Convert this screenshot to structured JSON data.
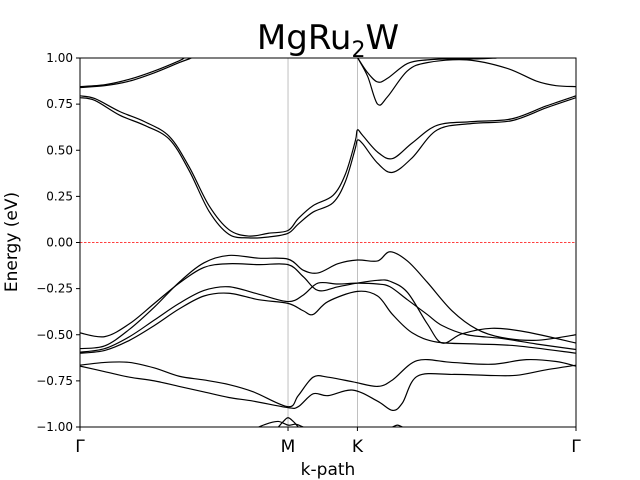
{
  "chart_data": {
    "type": "line",
    "title": "MgRu",
    "title_subscript": "2",
    "title_suffix": "W",
    "xlabel": "k-path",
    "ylabel": "Energy (eV)",
    "ylim": [
      -1.0,
      1.0
    ],
    "yticks": [
      1.0,
      0.75,
      0.5,
      0.25,
      0.0,
      -0.25,
      -0.5,
      -0.75,
      -1.0
    ],
    "ytick_labels": [
      "1.00",
      "0.75",
      "0.50",
      "0.25",
      "0.00",
      "−0.25",
      "−0.50",
      "−0.75",
      "−1.00"
    ],
    "xlim": [
      0,
      1.0
    ],
    "high_symmetry_points": [
      {
        "label": "Γ",
        "x": 0.0
      },
      {
        "label": "M",
        "x": 0.4194
      },
      {
        "label": "K",
        "x": 0.5593
      },
      {
        "label": "Γ",
        "x": 1.0
      }
    ],
    "fermi_level": 0.0,
    "colors": {
      "bands": "#000000",
      "fermi": "#ff0000",
      "vlines": "#b0b0b0"
    },
    "series": [
      {
        "points": [
          [
            0.0,
            0.845
          ],
          [
            0.05,
            0.855
          ],
          [
            0.1,
            0.885
          ],
          [
            0.15,
            0.93
          ],
          [
            0.2,
            0.985
          ],
          [
            0.21,
            1.0
          ]
        ]
      },
      {
        "points": [
          [
            0.0,
            0.84
          ],
          [
            0.05,
            0.85
          ],
          [
            0.1,
            0.875
          ],
          [
            0.15,
            0.92
          ],
          [
            0.2,
            0.975
          ],
          [
            0.225,
            1.0
          ]
        ]
      },
      {
        "points": [
          [
            0.56,
            1.0
          ],
          [
            0.58,
            0.9
          ],
          [
            0.6,
            0.75
          ],
          [
            0.62,
            0.79
          ],
          [
            0.66,
            0.93
          ],
          [
            0.7,
            0.975
          ],
          [
            0.78,
            0.99
          ],
          [
            0.86,
            0.945
          ],
          [
            0.92,
            0.875
          ],
          [
            0.96,
            0.85
          ],
          [
            1.0,
            0.845
          ]
        ]
      },
      {
        "points": [
          [
            0.56,
            1.0
          ],
          [
            0.58,
            0.92
          ],
          [
            0.6,
            0.87
          ],
          [
            0.62,
            0.89
          ],
          [
            0.66,
            0.97
          ],
          [
            0.7,
            0.99
          ],
          [
            0.74,
            0.995
          ],
          [
            0.8,
            0.995
          ],
          [
            0.84,
            1.0
          ]
        ]
      },
      {
        "points": [
          [
            0.0,
            0.795
          ],
          [
            0.03,
            0.78
          ],
          [
            0.08,
            0.71
          ],
          [
            0.13,
            0.655
          ],
          [
            0.18,
            0.575
          ],
          [
            0.22,
            0.41
          ],
          [
            0.26,
            0.2
          ],
          [
            0.3,
            0.07
          ],
          [
            0.34,
            0.035
          ],
          [
            0.38,
            0.05
          ],
          [
            0.4194,
            0.065
          ],
          [
            0.44,
            0.13
          ],
          [
            0.47,
            0.2
          ],
          [
            0.51,
            0.255
          ],
          [
            0.535,
            0.37
          ],
          [
            0.555,
            0.55
          ],
          [
            0.5593,
            0.61
          ],
          [
            0.57,
            0.58
          ],
          [
            0.6,
            0.49
          ],
          [
            0.63,
            0.455
          ],
          [
            0.67,
            0.54
          ],
          [
            0.72,
            0.635
          ],
          [
            0.79,
            0.655
          ],
          [
            0.87,
            0.67
          ],
          [
            0.94,
            0.74
          ],
          [
            1.0,
            0.795
          ]
        ]
      },
      {
        "points": [
          [
            0.0,
            0.785
          ],
          [
            0.03,
            0.77
          ],
          [
            0.08,
            0.69
          ],
          [
            0.13,
            0.635
          ],
          [
            0.18,
            0.56
          ],
          [
            0.22,
            0.39
          ],
          [
            0.26,
            0.17
          ],
          [
            0.3,
            0.045
          ],
          [
            0.34,
            0.025
          ],
          [
            0.38,
            0.03
          ],
          [
            0.4194,
            0.05
          ],
          [
            0.44,
            0.1
          ],
          [
            0.47,
            0.165
          ],
          [
            0.51,
            0.215
          ],
          [
            0.535,
            0.33
          ],
          [
            0.555,
            0.51
          ],
          [
            0.5593,
            0.555
          ],
          [
            0.57,
            0.535
          ],
          [
            0.6,
            0.43
          ],
          [
            0.63,
            0.38
          ],
          [
            0.67,
            0.46
          ],
          [
            0.72,
            0.61
          ],
          [
            0.79,
            0.645
          ],
          [
            0.87,
            0.66
          ],
          [
            0.94,
            0.73
          ],
          [
            1.0,
            0.785
          ]
        ]
      },
      {
        "points": [
          [
            0.0,
            -0.575
          ],
          [
            0.05,
            -0.56
          ],
          [
            0.1,
            -0.47
          ],
          [
            0.15,
            -0.35
          ],
          [
            0.2,
            -0.215
          ],
          [
            0.25,
            -0.11
          ],
          [
            0.3,
            -0.07
          ],
          [
            0.36,
            -0.085
          ],
          [
            0.4194,
            -0.09
          ],
          [
            0.45,
            -0.15
          ],
          [
            0.48,
            -0.165
          ],
          [
            0.52,
            -0.115
          ],
          [
            0.5593,
            -0.095
          ],
          [
            0.6,
            -0.1
          ],
          [
            0.625,
            -0.05
          ],
          [
            0.66,
            -0.1
          ],
          [
            0.7,
            -0.215
          ],
          [
            0.75,
            -0.37
          ],
          [
            0.8,
            -0.47
          ],
          [
            0.85,
            -0.515
          ],
          [
            0.92,
            -0.53
          ],
          [
            1.0,
            -0.5
          ]
        ]
      },
      {
        "points": [
          [
            0.0,
            -0.49
          ],
          [
            0.05,
            -0.51
          ],
          [
            0.1,
            -0.44
          ],
          [
            0.15,
            -0.33
          ],
          [
            0.2,
            -0.22
          ],
          [
            0.25,
            -0.135
          ],
          [
            0.3,
            -0.115
          ],
          [
            0.36,
            -0.12
          ],
          [
            0.4194,
            -0.12
          ],
          [
            0.45,
            -0.185
          ],
          [
            0.48,
            -0.26
          ],
          [
            0.52,
            -0.24
          ],
          [
            0.5593,
            -0.22
          ],
          [
            0.6,
            -0.205
          ],
          [
            0.625,
            -0.21
          ],
          [
            0.66,
            -0.27
          ],
          [
            0.7,
            -0.44
          ],
          [
            0.73,
            -0.545
          ],
          [
            0.77,
            -0.495
          ],
          [
            0.83,
            -0.465
          ],
          [
            0.9,
            -0.485
          ],
          [
            1.0,
            -0.545
          ]
        ]
      },
      {
        "points": [
          [
            0.0,
            -0.595
          ],
          [
            0.05,
            -0.575
          ],
          [
            0.1,
            -0.51
          ],
          [
            0.15,
            -0.42
          ],
          [
            0.2,
            -0.33
          ],
          [
            0.25,
            -0.26
          ],
          [
            0.3,
            -0.24
          ],
          [
            0.36,
            -0.28
          ],
          [
            0.4194,
            -0.32
          ],
          [
            0.45,
            -0.285
          ],
          [
            0.48,
            -0.22
          ],
          [
            0.52,
            -0.225
          ],
          [
            0.5593,
            -0.22
          ],
          [
            0.6,
            -0.225
          ],
          [
            0.625,
            -0.24
          ],
          [
            0.66,
            -0.31
          ],
          [
            0.7,
            -0.39
          ],
          [
            0.73,
            -0.45
          ],
          [
            0.78,
            -0.5
          ],
          [
            0.85,
            -0.52
          ],
          [
            0.92,
            -0.55
          ],
          [
            1.0,
            -0.58
          ]
        ]
      },
      {
        "points": [
          [
            0.0,
            -0.6
          ],
          [
            0.05,
            -0.585
          ],
          [
            0.1,
            -0.53
          ],
          [
            0.15,
            -0.45
          ],
          [
            0.2,
            -0.36
          ],
          [
            0.25,
            -0.29
          ],
          [
            0.3,
            -0.275
          ],
          [
            0.36,
            -0.31
          ],
          [
            0.4194,
            -0.33
          ],
          [
            0.45,
            -0.37
          ],
          [
            0.47,
            -0.39
          ],
          [
            0.5,
            -0.32
          ],
          [
            0.5593,
            -0.265
          ],
          [
            0.6,
            -0.29
          ],
          [
            0.63,
            -0.39
          ],
          [
            0.67,
            -0.49
          ],
          [
            0.72,
            -0.54
          ],
          [
            0.8,
            -0.55
          ],
          [
            0.88,
            -0.56
          ],
          [
            1.0,
            -0.6
          ]
        ]
      },
      {
        "points": [
          [
            0.0,
            -0.665
          ],
          [
            0.05,
            -0.65
          ],
          [
            0.1,
            -0.65
          ],
          [
            0.15,
            -0.68
          ],
          [
            0.2,
            -0.725
          ],
          [
            0.25,
            -0.745
          ],
          [
            0.3,
            -0.77
          ],
          [
            0.35,
            -0.81
          ],
          [
            0.4194,
            -0.89
          ],
          [
            0.44,
            -0.83
          ],
          [
            0.47,
            -0.73
          ],
          [
            0.5,
            -0.73
          ],
          [
            0.55,
            -0.755
          ],
          [
            0.6,
            -0.78
          ],
          [
            0.63,
            -0.745
          ],
          [
            0.68,
            -0.64
          ],
          [
            0.75,
            -0.65
          ],
          [
            0.83,
            -0.66
          ],
          [
            0.9,
            -0.635
          ],
          [
            0.96,
            -0.645
          ],
          [
            1.0,
            -0.67
          ]
        ]
      },
      {
        "points": [
          [
            0.0,
            -0.67
          ],
          [
            0.05,
            -0.7
          ],
          [
            0.1,
            -0.73
          ],
          [
            0.15,
            -0.75
          ],
          [
            0.2,
            -0.78
          ],
          [
            0.25,
            -0.81
          ],
          [
            0.3,
            -0.84
          ],
          [
            0.35,
            -0.86
          ],
          [
            0.4194,
            -0.895
          ],
          [
            0.44,
            -0.89
          ],
          [
            0.47,
            -0.82
          ],
          [
            0.5,
            -0.83
          ],
          [
            0.55,
            -0.8
          ],
          [
            0.6,
            -0.86
          ],
          [
            0.63,
            -0.91
          ],
          [
            0.65,
            -0.87
          ],
          [
            0.68,
            -0.725
          ],
          [
            0.75,
            -0.715
          ],
          [
            0.82,
            -0.72
          ],
          [
            0.88,
            -0.72
          ],
          [
            0.94,
            -0.69
          ],
          [
            1.0,
            -0.665
          ]
        ]
      },
      {
        "points": [
          [
            0.36,
            -1.0
          ],
          [
            0.38,
            -0.98
          ],
          [
            0.4,
            -0.97
          ],
          [
            0.42,
            -0.99
          ],
          [
            0.435,
            -0.985
          ],
          [
            0.45,
            -1.0
          ]
        ]
      },
      {
        "points": [
          [
            0.4,
            -1.0
          ],
          [
            0.41,
            -0.97
          ],
          [
            0.4194,
            -0.95
          ],
          [
            0.43,
            -0.97
          ],
          [
            0.44,
            -1.0
          ]
        ]
      },
      {
        "points": [
          [
            0.63,
            -1.0
          ],
          [
            0.64,
            -0.99
          ],
          [
            0.65,
            -1.0
          ]
        ]
      }
    ]
  }
}
